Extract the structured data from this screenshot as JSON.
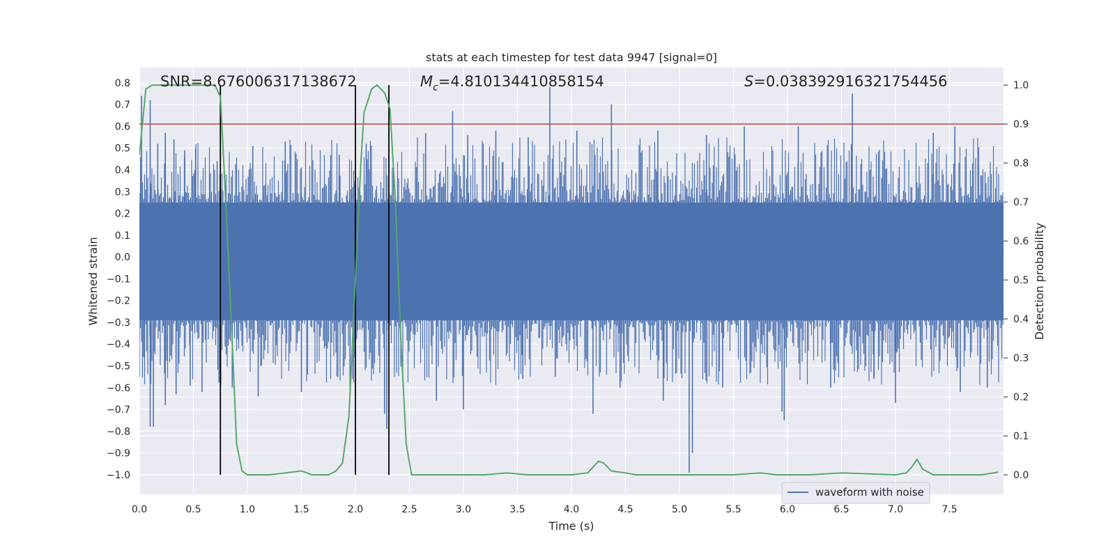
{
  "chart_data": {
    "type": "line",
    "title": "stats at each timestep for test data 9947 [signal=0]",
    "xlabel": "Time (s)",
    "ylabel_left": "Whitened strain",
    "ylabel_right": "Detection probability",
    "xlim": [
      0.0,
      8.0
    ],
    "ylim_left": [
      -1.09,
      0.87
    ],
    "ylim_right": [
      -0.05,
      1.045
    ],
    "x_ticks": [
      0.0,
      0.5,
      1.0,
      1.5,
      2.0,
      2.5,
      3.0,
      3.5,
      4.0,
      4.5,
      5.0,
      5.5,
      6.0,
      6.5,
      7.0,
      7.5
    ],
    "x_tick_labels": [
      "0.0",
      "0.5",
      "1.0",
      "1.5",
      "2.0",
      "2.5",
      "3.0",
      "3.5",
      "4.0",
      "4.5",
      "5.0",
      "5.5",
      "6.0",
      "6.5",
      "7.0",
      "7.5"
    ],
    "y_left_ticks": [
      0.8,
      0.7,
      0.6,
      0.5,
      0.4,
      0.3,
      0.2,
      0.1,
      0.0,
      -0.1,
      -0.2,
      -0.3,
      -0.4,
      -0.5,
      -0.6,
      -0.7,
      -0.8,
      -0.9,
      -1.0
    ],
    "y_left_tick_labels": [
      "0.8",
      "0.7",
      "0.6",
      "0.5",
      "0.4",
      "0.3",
      "0.2",
      "0.1",
      "0.0",
      "−0.1",
      "−0.2",
      "−0.3",
      "−0.4",
      "−0.5",
      "−0.6",
      "−0.7",
      "−0.8",
      "−0.9",
      "−1.0"
    ],
    "y_right_ticks": [
      1.0,
      0.9,
      0.8,
      0.7,
      0.6,
      0.5,
      0.4,
      0.3,
      0.2,
      0.1,
      0.0
    ],
    "y_right_tick_labels": [
      "1.0",
      "0.9",
      "0.8",
      "0.7",
      "0.6",
      "0.5",
      "0.4",
      "0.3",
      "0.2",
      "0.1",
      "0.0"
    ],
    "grid": true,
    "legend_position": "bottom-right",
    "annotations": {
      "snr": "SNR=8.676006317138672",
      "mc_symbol": "M",
      "mc_subscript": "c",
      "mc_value": "=4.810134410858154",
      "s_symbol": "S",
      "s_value": "=0.038392916321754456"
    },
    "series": [
      {
        "name": "waveform with noise",
        "color": "#4c72b0",
        "axis": "left",
        "envelope_band": [
          -0.29,
          0.25
        ],
        "spike_peaks": [
          {
            "x": 0.02,
            "y": 0.74
          },
          {
            "x": 0.04,
            "y": -0.46
          },
          {
            "x": 0.1,
            "y": -0.78
          },
          {
            "x": 0.1,
            "y": 0.72
          },
          {
            "x": 0.13,
            "y": -0.78
          },
          {
            "x": 0.17,
            "y": 0.52
          },
          {
            "x": 0.24,
            "y": 0.57
          },
          {
            "x": 0.24,
            "y": -0.68
          },
          {
            "x": 0.32,
            "y": 0.54
          },
          {
            "x": 0.34,
            "y": -0.63
          },
          {
            "x": 0.42,
            "y": 0.49
          },
          {
            "x": 0.47,
            "y": -0.59
          },
          {
            "x": 0.52,
            "y": 0.5
          },
          {
            "x": 0.58,
            "y": -0.62
          },
          {
            "x": 0.72,
            "y": 0.44
          },
          {
            "x": 0.86,
            "y": -0.6
          },
          {
            "x": 1.05,
            "y": 0.51
          },
          {
            "x": 1.1,
            "y": -0.64
          },
          {
            "x": 1.35,
            "y": 0.53
          },
          {
            "x": 1.5,
            "y": -0.62
          },
          {
            "x": 1.85,
            "y": 0.47
          },
          {
            "x": 1.95,
            "y": -0.64
          },
          {
            "x": 2.1,
            "y": 0.52
          },
          {
            "x": 2.27,
            "y": -0.72
          },
          {
            "x": 2.29,
            "y": -0.79
          },
          {
            "x": 2.65,
            "y": 0.57
          },
          {
            "x": 2.75,
            "y": -0.66
          },
          {
            "x": 2.9,
            "y": 0.67
          },
          {
            "x": 3.0,
            "y": -0.7
          },
          {
            "x": 3.04,
            "y": 0.56
          },
          {
            "x": 3.3,
            "y": 0.58
          },
          {
            "x": 3.55,
            "y": -0.56
          },
          {
            "x": 3.6,
            "y": 0.55
          },
          {
            "x": 3.8,
            "y": 0.78
          },
          {
            "x": 3.85,
            "y": -0.55
          },
          {
            "x": 4.05,
            "y": 0.58
          },
          {
            "x": 4.2,
            "y": -0.72
          },
          {
            "x": 4.37,
            "y": 0.7
          },
          {
            "x": 4.45,
            "y": -0.6
          },
          {
            "x": 4.8,
            "y": 0.58
          },
          {
            "x": 4.85,
            "y": -0.66
          },
          {
            "x": 5.09,
            "y": -0.99
          },
          {
            "x": 5.12,
            "y": -0.9
          },
          {
            "x": 5.25,
            "y": 0.56
          },
          {
            "x": 5.4,
            "y": -0.6
          },
          {
            "x": 5.6,
            "y": 0.6
          },
          {
            "x": 5.95,
            "y": -0.71
          },
          {
            "x": 5.97,
            "y": -0.75
          },
          {
            "x": 6.1,
            "y": 0.6
          },
          {
            "x": 6.4,
            "y": -0.6
          },
          {
            "x": 6.6,
            "y": 0.75
          },
          {
            "x": 6.8,
            "y": -0.56
          },
          {
            "x": 7.0,
            "y": -0.67
          },
          {
            "x": 7.35,
            "y": 0.57
          },
          {
            "x": 7.55,
            "y": 0.6
          },
          {
            "x": 7.6,
            "y": -0.62
          },
          {
            "x": 7.85,
            "y": -0.6
          }
        ]
      },
      {
        "name": "",
        "color": "#55a868",
        "axis": "right",
        "points": [
          {
            "x": 0.0,
            "y": 0.82
          },
          {
            "x": 0.06,
            "y": 0.99
          },
          {
            "x": 0.12,
            "y": 1.0
          },
          {
            "x": 0.25,
            "y": 1.0
          },
          {
            "x": 0.5,
            "y": 1.0
          },
          {
            "x": 0.7,
            "y": 1.0
          },
          {
            "x": 0.75,
            "y": 0.97
          },
          {
            "x": 0.8,
            "y": 0.7
          },
          {
            "x": 0.85,
            "y": 0.4
          },
          {
            "x": 0.9,
            "y": 0.08
          },
          {
            "x": 0.95,
            "y": 0.01
          },
          {
            "x": 1.0,
            "y": 0.0
          },
          {
            "x": 1.2,
            "y": 0.0
          },
          {
            "x": 1.35,
            "y": 0.005
          },
          {
            "x": 1.5,
            "y": 0.01
          },
          {
            "x": 1.6,
            "y": 0.0
          },
          {
            "x": 1.75,
            "y": 0.0
          },
          {
            "x": 1.82,
            "y": 0.01
          },
          {
            "x": 1.88,
            "y": 0.03
          },
          {
            "x": 1.94,
            "y": 0.15
          },
          {
            "x": 2.0,
            "y": 0.5
          },
          {
            "x": 2.05,
            "y": 0.8
          },
          {
            "x": 2.08,
            "y": 0.93
          },
          {
            "x": 2.15,
            "y": 0.99
          },
          {
            "x": 2.2,
            "y": 1.0
          },
          {
            "x": 2.27,
            "y": 0.98
          },
          {
            "x": 2.32,
            "y": 0.94
          },
          {
            "x": 2.37,
            "y": 0.7
          },
          {
            "x": 2.42,
            "y": 0.35
          },
          {
            "x": 2.47,
            "y": 0.08
          },
          {
            "x": 2.52,
            "y": 0.0
          },
          {
            "x": 2.6,
            "y": 0.0
          },
          {
            "x": 3.0,
            "y": 0.0
          },
          {
            "x": 3.2,
            "y": 0.0
          },
          {
            "x": 3.4,
            "y": 0.005
          },
          {
            "x": 3.6,
            "y": 0.0
          },
          {
            "x": 3.8,
            "y": 0.0
          },
          {
            "x": 4.0,
            "y": 0.0
          },
          {
            "x": 4.15,
            "y": 0.005
          },
          {
            "x": 4.25,
            "y": 0.035
          },
          {
            "x": 4.3,
            "y": 0.03
          },
          {
            "x": 4.37,
            "y": 0.01
          },
          {
            "x": 4.5,
            "y": 0.005
          },
          {
            "x": 4.6,
            "y": 0.0
          },
          {
            "x": 5.0,
            "y": 0.0
          },
          {
            "x": 5.5,
            "y": 0.0
          },
          {
            "x": 5.75,
            "y": 0.005
          },
          {
            "x": 5.9,
            "y": 0.0
          },
          {
            "x": 6.2,
            "y": 0.0
          },
          {
            "x": 6.5,
            "y": 0.005
          },
          {
            "x": 7.0,
            "y": 0.0
          },
          {
            "x": 7.1,
            "y": 0.005
          },
          {
            "x": 7.15,
            "y": 0.02
          },
          {
            "x": 7.2,
            "y": 0.04
          },
          {
            "x": 7.25,
            "y": 0.015
          },
          {
            "x": 7.35,
            "y": 0.0
          },
          {
            "x": 7.6,
            "y": 0.0
          },
          {
            "x": 7.8,
            "y": 0.0
          },
          {
            "x": 7.95,
            "y": 0.007
          }
        ]
      }
    ],
    "hlines": [
      {
        "axis": "right",
        "y": 0.9,
        "color": "#c44e52"
      }
    ],
    "vlines": [
      {
        "x": 0.75,
        "y_from_right": 0.0,
        "y_to_right": 1.0,
        "color": "#000000"
      },
      {
        "x": 2.0,
        "y_from_right": 0.0,
        "y_to_right": 1.0,
        "color": "#000000"
      },
      {
        "x": 2.31,
        "y_from_right": 0.0,
        "y_to_right": 1.0,
        "color": "#000000"
      }
    ]
  }
}
